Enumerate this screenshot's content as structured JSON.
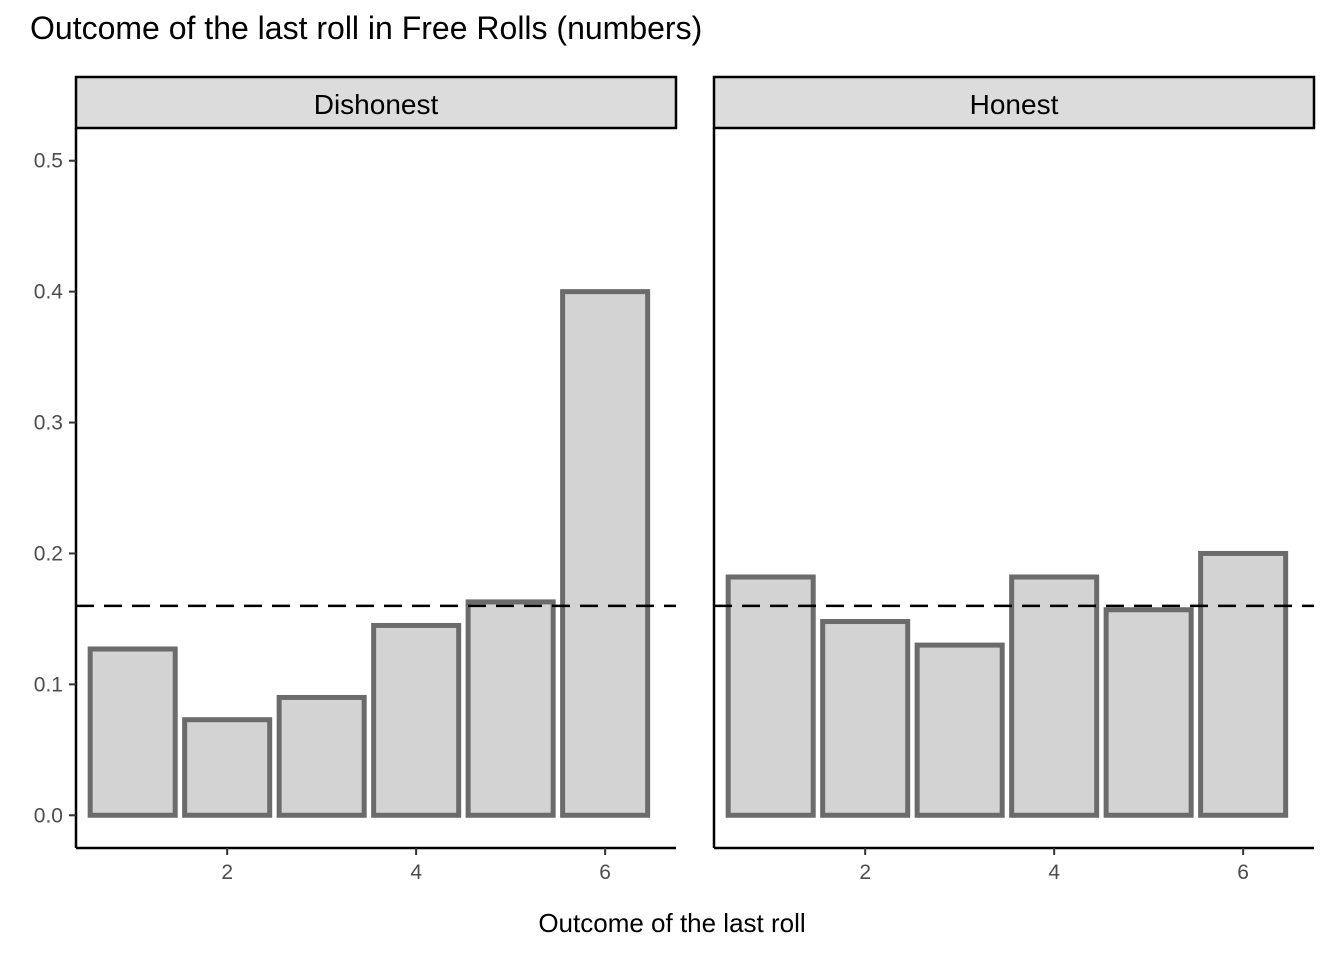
{
  "chart_data": {
    "type": "bar",
    "title": "Outcome of the last roll in Free Rolls (numbers)",
    "xlabel": "Outcome of the last roll",
    "ylabel": "",
    "ylim": [
      -0.025,
      0.525
    ],
    "xlim": [
      0.4,
      6.75
    ],
    "yticks": [
      0.0,
      0.1,
      0.2,
      0.3,
      0.4,
      0.5
    ],
    "yticklabels": [
      "0.0",
      "0.1",
      "0.2",
      "0.3",
      "0.4",
      "0.5"
    ],
    "xticks": [
      2,
      4,
      6
    ],
    "xticklabels": [
      "2",
      "4",
      "6"
    ],
    "reference_line": {
      "y": 0.16,
      "style": "dashed",
      "color": "#000000"
    },
    "bar_fill": "#d3d3d3",
    "bar_stroke": "#6b6b6b",
    "strip_fill": "#dcdcdc",
    "facets": [
      {
        "name": "Dishonest",
        "x": [
          1,
          2,
          3,
          4,
          5,
          6
        ],
        "values": [
          0.127,
          0.073,
          0.09,
          0.145,
          0.163,
          0.4
        ]
      },
      {
        "name": "Honest",
        "x": [
          1,
          2,
          3,
          4,
          5,
          6
        ],
        "values": [
          0.182,
          0.148,
          0.13,
          0.182,
          0.157,
          0.2
        ]
      }
    ]
  }
}
